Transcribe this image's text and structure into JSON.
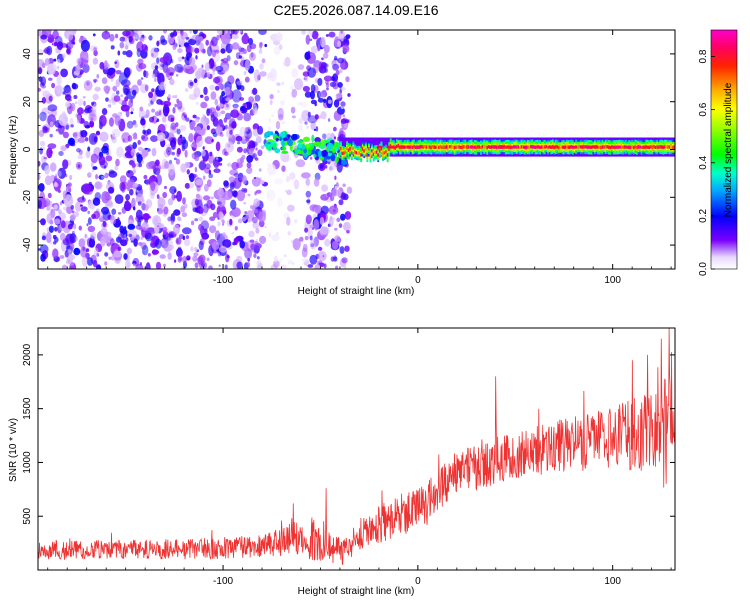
{
  "figure": {
    "title": "C2E5.2026.087.14.09.E16"
  },
  "colors": {
    "spectrum_base": "#7b2cff",
    "snr_line": "#ee3333",
    "axis": "#000000"
  },
  "chart_data": [
    {
      "type": "heatmap",
      "title": "C2E5.2026.087.14.09.E16",
      "xlabel": "Height of straight line (km)",
      "ylabel": "Frequency (Hz)",
      "xlim": [
        -195,
        132
      ],
      "ylim": [
        -50,
        50
      ],
      "x_ticks": [
        -100,
        0,
        100
      ],
      "x_tick_labels": [
        "-100",
        "0",
        "100"
      ],
      "y_ticks": [
        -40,
        -20,
        0,
        20,
        40
      ],
      "y_tick_labels": [
        "-40",
        "-20",
        "0",
        "20",
        "40"
      ],
      "colorbar": {
        "label": "Normalized spectral amplitude",
        "range": [
          0.0,
          0.9
        ],
        "ticks": [
          0.0,
          0.2,
          0.4,
          0.6,
          0.8
        ],
        "tick_labels": [
          "0.0",
          "0.2",
          "0.4",
          "0.6",
          "0.8"
        ],
        "colormap": "hsv-rainbow"
      },
      "regions": [
        {
          "name": "noise-field",
          "x_range": [
            -195,
            -78
          ],
          "f_range": [
            -50,
            50
          ],
          "amplitude": [
            0.05,
            0.2
          ]
        },
        {
          "name": "noise-band",
          "x_range": [
            -58,
            -35
          ],
          "f_range": [
            -50,
            50
          ],
          "amplitude": [
            0.05,
            0.2
          ]
        },
        {
          "name": "noise-sparse",
          "x_range": [
            -78,
            -58
          ],
          "f_range": [
            -50,
            50
          ],
          "amplitude": [
            0.02,
            0.08
          ]
        },
        {
          "name": "transition-blobs",
          "x_range": [
            -78,
            -35
          ],
          "f_range": [
            -3,
            8
          ],
          "amplitude": [
            0.15,
            0.5
          ]
        },
        {
          "name": "signal-line",
          "x_range": [
            -40,
            132
          ],
          "f_center": 1,
          "f_halfwidth": 4,
          "amplitude": [
            0.3,
            0.85
          ]
        }
      ]
    },
    {
      "type": "line",
      "title": "",
      "xlabel": "Height of straight line (km)",
      "ylabel": "SNR (10 * v/v)",
      "xlim": [
        -195,
        132
      ],
      "ylim": [
        0,
        2250
      ],
      "x_ticks": [
        -100,
        0,
        100
      ],
      "x_tick_labels": [
        "-100",
        "0",
        "100"
      ],
      "y_ticks": [
        500,
        1000,
        1500,
        2000
      ],
      "y_tick_labels": [
        "500",
        "1000",
        "1500",
        "2000"
      ],
      "series": [
        {
          "name": "SNR",
          "envelope": {
            "x": [
              -195,
              -150,
              -100,
              -80,
              -70,
              -65,
              -60,
              -50,
              -45,
              -38,
              -30,
              -25,
              -20,
              -10,
              0,
              5,
              10,
              20,
              30,
              40,
              50,
              60,
              70,
              80,
              90,
              100,
              110,
              120,
              125,
              132
            ],
            "mean": [
              180,
              190,
              200,
              230,
              260,
              330,
              280,
              300,
              210,
              160,
              320,
              400,
              430,
              500,
              560,
              620,
              750,
              880,
              960,
              1020,
              1060,
              1100,
              1150,
              1170,
              1200,
              1230,
              1260,
              1280,
              1250,
              1300
            ],
            "spread": [
              90,
              90,
              100,
              110,
              130,
              180,
              150,
              250,
              150,
              110,
              150,
              170,
              180,
              200,
              200,
              200,
              200,
              200,
              220,
              220,
              230,
              240,
              250,
              260,
              270,
              300,
              330,
              380,
              500,
              600
            ]
          },
          "peaks": [
            {
              "x": -64,
              "y": 620
            },
            {
              "x": -47,
              "y": 760
            },
            {
              "x": 40,
              "y": 1800
            },
            {
              "x": 110,
              "y": 1950
            },
            {
              "x": 118,
              "y": 2000
            },
            {
              "x": 125,
              "y": 2150
            },
            {
              "x": 129,
              "y": 2250
            }
          ]
        }
      ]
    }
  ]
}
